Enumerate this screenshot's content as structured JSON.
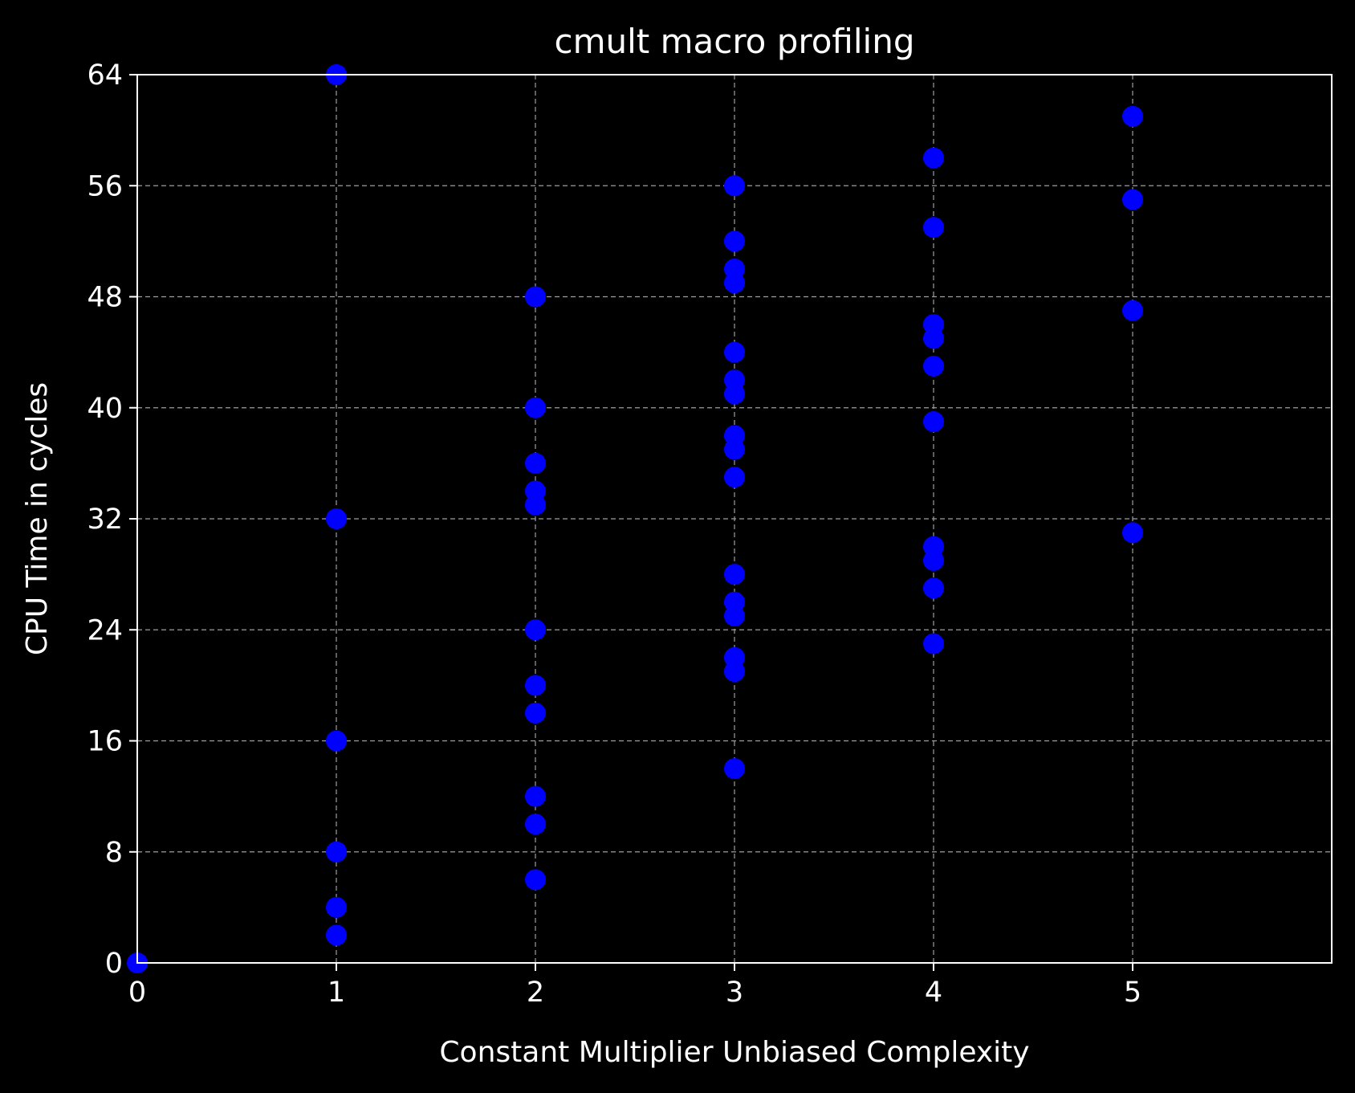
{
  "chart_data": {
    "type": "scatter",
    "title": "cmult macro profiling",
    "xlabel": "Constant Multiplier Unbiased Complexity",
    "ylabel": "CPU Time in cycles",
    "xlim": [
      0,
      6
    ],
    "ylim": [
      0,
      64
    ],
    "xticks": [
      "0",
      "1",
      "2",
      "3",
      "4",
      "5"
    ],
    "yticks": [
      "0",
      "8",
      "16",
      "24",
      "32",
      "40",
      "48",
      "56",
      "64"
    ],
    "grid": true,
    "marker_color": "#0000ff",
    "series": [
      {
        "points": [
          [
            0,
            0
          ],
          [
            1,
            2
          ],
          [
            1,
            4
          ],
          [
            1,
            8
          ],
          [
            1,
            16
          ],
          [
            1,
            32
          ],
          [
            1,
            64
          ],
          [
            2,
            6
          ],
          [
            2,
            10
          ],
          [
            2,
            12
          ],
          [
            2,
            18
          ],
          [
            2,
            20
          ],
          [
            2,
            24
          ],
          [
            2,
            33
          ],
          [
            2,
            34
          ],
          [
            2,
            36
          ],
          [
            2,
            40
          ],
          [
            2,
            48
          ],
          [
            3,
            14
          ],
          [
            3,
            21
          ],
          [
            3,
            22
          ],
          [
            3,
            25
          ],
          [
            3,
            26
          ],
          [
            3,
            28
          ],
          [
            3,
            35
          ],
          [
            3,
            37
          ],
          [
            3,
            38
          ],
          [
            3,
            41
          ],
          [
            3,
            42
          ],
          [
            3,
            44
          ],
          [
            3,
            49
          ],
          [
            3,
            50
          ],
          [
            3,
            52
          ],
          [
            3,
            56
          ],
          [
            4,
            23
          ],
          [
            4,
            27
          ],
          [
            4,
            29
          ],
          [
            4,
            30
          ],
          [
            4,
            39
          ],
          [
            4,
            43
          ],
          [
            4,
            45
          ],
          [
            4,
            46
          ],
          [
            4,
            53
          ],
          [
            4,
            58
          ],
          [
            5,
            31
          ],
          [
            5,
            47
          ],
          [
            5,
            55
          ],
          [
            5,
            61
          ]
        ]
      }
    ]
  }
}
